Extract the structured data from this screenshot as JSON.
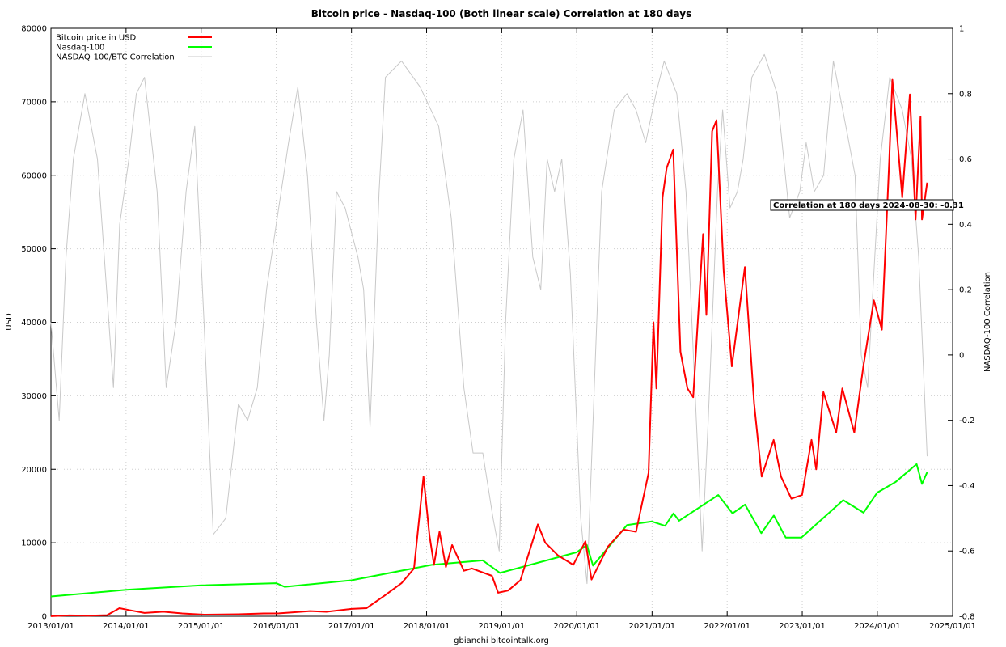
{
  "chart_data": {
    "type": "line",
    "title": "Bitcoin price - Nasdaq-100 (Both linear scale) Correlation at 180 days",
    "xlabel": "gbianchi bitcointalk.org",
    "ylabel": "USD",
    "y2label": "NASDAQ-100 Correlation",
    "xlim": [
      "2013/01/01",
      "2025/01/01"
    ],
    "ylim": [
      0,
      80000
    ],
    "y2lim": [
      -0.8,
      1
    ],
    "xticks": [
      "2013/01/01",
      "2014/01/01",
      "2015/01/01",
      "2016/01/01",
      "2017/01/01",
      "2018/01/01",
      "2019/01/01",
      "2020/01/01",
      "2021/01/01",
      "2022/01/01",
      "2023/01/01",
      "2024/01/01",
      "2025/01/01"
    ],
    "yticks": [
      "0",
      "10000",
      "20000",
      "30000",
      "40000",
      "50000",
      "60000",
      "70000",
      "80000"
    ],
    "y2ticks": [
      "-0.8",
      "-0.6",
      "-0.4",
      "-0.2",
      "0",
      "0.2",
      "0.4",
      "0.6",
      "0.8",
      "1"
    ],
    "grid": true,
    "legend_position": "top-left",
    "annotation": "Correlation at 180 days 2024-08-30: -0.31",
    "series": [
      {
        "name": "Bitcoin price in USD",
        "color": "#ff0000",
        "axis": "left",
        "points": [
          [
            "2013-01-01",
            13
          ],
          [
            "2013-04-01",
            120
          ],
          [
            "2013-07-01",
            90
          ],
          [
            "2013-10-01",
            150
          ],
          [
            "2013-11-30",
            1100
          ],
          [
            "2014-01-15",
            850
          ],
          [
            "2014-04-01",
            450
          ],
          [
            "2014-07-01",
            620
          ],
          [
            "2014-10-01",
            380
          ],
          [
            "2015-01-15",
            220
          ],
          [
            "2015-07-01",
            280
          ],
          [
            "2015-11-01",
            380
          ],
          [
            "2016-01-15",
            400
          ],
          [
            "2016-06-15",
            700
          ],
          [
            "2016-09-01",
            600
          ],
          [
            "2017-01-01",
            1000
          ],
          [
            "2017-03-15",
            1100
          ],
          [
            "2017-06-10",
            2800
          ],
          [
            "2017-09-01",
            4500
          ],
          [
            "2017-11-01",
            6500
          ],
          [
            "2017-12-17",
            19000
          ],
          [
            "2018-01-15",
            11000
          ],
          [
            "2018-02-06",
            7000
          ],
          [
            "2018-03-05",
            11500
          ],
          [
            "2018-04-05",
            6700
          ],
          [
            "2018-05-05",
            9700
          ],
          [
            "2018-07-01",
            6200
          ],
          [
            "2018-08-10",
            6500
          ],
          [
            "2018-11-15",
            5500
          ],
          [
            "2018-12-15",
            3200
          ],
          [
            "2019-02-01",
            3500
          ],
          [
            "2019-04-02",
            4900
          ],
          [
            "2019-06-26",
            12500
          ],
          [
            "2019-08-01",
            10000
          ],
          [
            "2019-10-01",
            8300
          ],
          [
            "2019-12-15",
            7000
          ],
          [
            "2020-02-12",
            10200
          ],
          [
            "2020-03-13",
            5000
          ],
          [
            "2020-06-01",
            9500
          ],
          [
            "2020-08-15",
            11800
          ],
          [
            "2020-10-15",
            11500
          ],
          [
            "2020-12-15",
            19500
          ],
          [
            "2021-01-08",
            40000
          ],
          [
            "2021-01-22",
            31000
          ],
          [
            "2021-02-21",
            57000
          ],
          [
            "2021-03-13",
            61000
          ],
          [
            "2021-04-14",
            63500
          ],
          [
            "2021-05-19",
            36000
          ],
          [
            "2021-06-22",
            31000
          ],
          [
            "2021-07-20",
            29800
          ],
          [
            "2021-09-06",
            52000
          ],
          [
            "2021-09-22",
            41000
          ],
          [
            "2021-10-20",
            66000
          ],
          [
            "2021-11-10",
            67500
          ],
          [
            "2021-12-15",
            47000
          ],
          [
            "2022-01-24",
            34000
          ],
          [
            "2022-03-28",
            47500
          ],
          [
            "2022-05-12",
            29000
          ],
          [
            "2022-06-18",
            19000
          ],
          [
            "2022-08-15",
            24000
          ],
          [
            "2022-09-20",
            19000
          ],
          [
            "2022-11-09",
            16000
          ],
          [
            "2022-12-31",
            16500
          ],
          [
            "2023-02-15",
            24000
          ],
          [
            "2023-03-10",
            20000
          ],
          [
            "2023-04-14",
            30500
          ],
          [
            "2023-06-15",
            25000
          ],
          [
            "2023-07-15",
            31000
          ],
          [
            "2023-09-11",
            25000
          ],
          [
            "2023-10-25",
            34000
          ],
          [
            "2023-12-15",
            43000
          ],
          [
            "2024-01-23",
            39000
          ],
          [
            "2024-02-28",
            62000
          ],
          [
            "2024-03-14",
            73000
          ],
          [
            "2024-05-01",
            57000
          ],
          [
            "2024-06-07",
            71000
          ],
          [
            "2024-07-05",
            54000
          ],
          [
            "2024-07-29",
            68000
          ],
          [
            "2024-08-05",
            54000
          ],
          [
            "2024-08-30",
            59000
          ]
        ]
      },
      {
        "name": "Nasdaq-100",
        "color": "#00ff00",
        "axis": "left",
        "points": [
          [
            "2013-01-01",
            2700
          ],
          [
            "2014-01-01",
            3600
          ],
          [
            "2015-01-01",
            4200
          ],
          [
            "2016-01-01",
            4500
          ],
          [
            "2016-02-11",
            4000
          ],
          [
            "2017-01-01",
            4900
          ],
          [
            "2018-01-26",
            7000
          ],
          [
            "2018-10-01",
            7600
          ],
          [
            "2018-12-24",
            5900
          ],
          [
            "2019-12-31",
            8700
          ],
          [
            "2020-02-19",
            9700
          ],
          [
            "2020-03-20",
            6900
          ],
          [
            "2020-09-01",
            12400
          ],
          [
            "2020-12-31",
            12900
          ],
          [
            "2021-03-05",
            12300
          ],
          [
            "2021-04-15",
            14000
          ],
          [
            "2021-05-12",
            13000
          ],
          [
            "2021-11-19",
            16500
          ],
          [
            "2022-01-27",
            14000
          ],
          [
            "2022-03-29",
            15200
          ],
          [
            "2022-06-16",
            11300
          ],
          [
            "2022-08-16",
            13700
          ],
          [
            "2022-10-13",
            10700
          ],
          [
            "2022-12-28",
            10700
          ],
          [
            "2023-07-19",
            15800
          ],
          [
            "2023-10-26",
            14100
          ],
          [
            "2023-12-31",
            16800
          ],
          [
            "2024-03-31",
            18300
          ],
          [
            "2024-07-10",
            20700
          ],
          [
            "2024-08-05",
            18000
          ],
          [
            "2024-08-30",
            19600
          ]
        ]
      },
      {
        "name": "NASDAQ-100/BTC Correlation",
        "color": "#c8c8c8",
        "axis": "right",
        "points": [
          [
            "2013-01-01",
            0.1
          ],
          [
            "2013-02-10",
            -0.2
          ],
          [
            "2013-03-15",
            0.3
          ],
          [
            "2013-04-20",
            0.6
          ],
          [
            "2013-06-15",
            0.8
          ],
          [
            "2013-08-15",
            0.6
          ],
          [
            "2013-11-01",
            -0.1
          ],
          [
            "2013-12-01",
            0.4
          ],
          [
            "2014-01-15",
            0.6
          ],
          [
            "2014-02-20",
            0.8
          ],
          [
            "2014-04-01",
            0.85
          ],
          [
            "2014-06-01",
            0.5
          ],
          [
            "2014-07-15",
            -0.1
          ],
          [
            "2014-09-01",
            0.1
          ],
          [
            "2014-10-20",
            0.5
          ],
          [
            "2014-12-01",
            0.7
          ],
          [
            "2015-01-15",
            0.1
          ],
          [
            "2015-03-01",
            -0.55
          ],
          [
            "2015-05-01",
            -0.5
          ],
          [
            "2015-07-01",
            -0.15
          ],
          [
            "2015-08-15",
            -0.2
          ],
          [
            "2015-10-01",
            -0.1
          ],
          [
            "2015-11-15",
            0.2
          ],
          [
            "2016-01-01",
            0.4
          ],
          [
            "2016-03-01",
            0.65
          ],
          [
            "2016-04-15",
            0.82
          ],
          [
            "2016-06-01",
            0.55
          ],
          [
            "2016-07-15",
            0.1
          ],
          [
            "2016-08-20",
            -0.2
          ],
          [
            "2016-09-15",
            0.0
          ],
          [
            "2016-10-20",
            0.5
          ],
          [
            "2016-12-01",
            0.45
          ],
          [
            "2017-02-01",
            0.3
          ],
          [
            "2017-03-01",
            0.2
          ],
          [
            "2017-04-01",
            -0.22
          ],
          [
            "2017-05-15",
            0.5
          ],
          [
            "2017-06-15",
            0.85
          ],
          [
            "2017-09-01",
            0.9
          ],
          [
            "2017-12-01",
            0.82
          ],
          [
            "2018-03-01",
            0.7
          ],
          [
            "2018-05-01",
            0.42
          ],
          [
            "2018-07-01",
            -0.1
          ],
          [
            "2018-08-15",
            -0.3
          ],
          [
            "2018-10-01",
            -0.3
          ],
          [
            "2018-11-20",
            -0.5
          ],
          [
            "2018-12-20",
            -0.6
          ],
          [
            "2019-01-20",
            0.1
          ],
          [
            "2019-03-01",
            0.6
          ],
          [
            "2019-04-15",
            0.75
          ],
          [
            "2019-06-01",
            0.3
          ],
          [
            "2019-07-10",
            0.2
          ],
          [
            "2019-08-10",
            0.6
          ],
          [
            "2019-09-15",
            0.5
          ],
          [
            "2019-10-20",
            0.6
          ],
          [
            "2019-12-01",
            0.25
          ],
          [
            "2020-01-20",
            -0.5
          ],
          [
            "2020-02-20",
            -0.7
          ],
          [
            "2020-04-01",
            0.0
          ],
          [
            "2020-05-01",
            0.5
          ],
          [
            "2020-07-01",
            0.75
          ],
          [
            "2020-09-01",
            0.8
          ],
          [
            "2020-10-15",
            0.75
          ],
          [
            "2020-12-01",
            0.65
          ],
          [
            "2021-01-20",
            0.8
          ],
          [
            "2021-03-01",
            0.9
          ],
          [
            "2021-05-01",
            0.8
          ],
          [
            "2021-06-15",
            0.5
          ],
          [
            "2021-08-15",
            -0.35
          ],
          [
            "2021-09-01",
            -0.6
          ],
          [
            "2021-10-01",
            -0.2
          ],
          [
            "2021-11-15",
            0.5
          ],
          [
            "2021-12-10",
            0.75
          ],
          [
            "2022-01-15",
            0.45
          ],
          [
            "2022-02-20",
            0.5
          ],
          [
            "2022-03-20",
            0.6
          ],
          [
            "2022-05-01",
            0.85
          ],
          [
            "2022-07-01",
            0.92
          ],
          [
            "2022-09-01",
            0.8
          ],
          [
            "2022-11-01",
            0.42
          ],
          [
            "2022-12-20",
            0.5
          ],
          [
            "2023-01-20",
            0.65
          ],
          [
            "2023-03-01",
            0.5
          ],
          [
            "2023-04-15",
            0.55
          ],
          [
            "2023-06-01",
            0.9
          ],
          [
            "2023-08-01",
            0.7
          ],
          [
            "2023-09-15",
            0.55
          ],
          [
            "2023-10-15",
            0.0
          ],
          [
            "2023-11-15",
            -0.1
          ],
          [
            "2023-12-15",
            0.25
          ],
          [
            "2024-01-15",
            0.6
          ],
          [
            "2024-03-01",
            0.85
          ],
          [
            "2024-05-01",
            0.75
          ],
          [
            "2024-06-15",
            0.6
          ],
          [
            "2024-07-20",
            0.3
          ],
          [
            "2024-08-30",
            -0.31
          ]
        ]
      }
    ]
  }
}
